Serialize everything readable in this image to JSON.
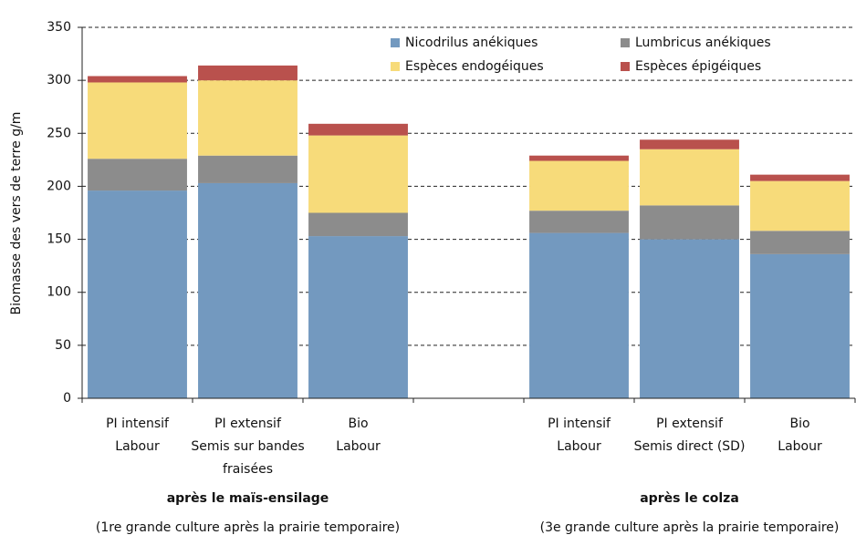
{
  "chart_data": {
    "type": "stacked_bar",
    "y_label": "Biomasse des vers de terre g/m",
    "categories": [
      [
        "PI intensif",
        "Labour"
      ],
      [
        "PI extensif",
        "Semis sur bandes",
        "fraisées"
      ],
      [
        "Bio",
        "Labour"
      ],
      null,
      [
        "PI intensif",
        "Labour"
      ],
      [
        "PI extensif",
        "Semis direct (SD)"
      ],
      [
        "Bio",
        "Labour"
      ]
    ],
    "groups": [
      {
        "label": "après le maïs-ensilage",
        "note": "(1re grande culture après la prairie temporaire)"
      },
      {
        "label": "après le colza",
        "note": "(3e grande culture après la prairie temporaire)"
      }
    ],
    "series": [
      {
        "name": "Nicodrilus anékiques",
        "color": "#7399bf",
        "values": [
          196,
          203,
          153,
          null,
          156,
          150,
          136
        ]
      },
      {
        "name": "Lumbricus anékiques",
        "color": "#8c8c8c",
        "values": [
          30,
          26,
          22,
          null,
          21,
          32,
          22
        ]
      },
      {
        "name": "Espèces endogéiques",
        "color": "#f7db7a",
        "values": [
          72,
          71,
          73,
          null,
          47,
          53,
          47
        ]
      },
      {
        "name": "Espèces épigéiques",
        "color": "#b9514d",
        "values": [
          6,
          14,
          11,
          null,
          5,
          9,
          6
        ]
      }
    ],
    "ylim": [
      0,
      350
    ],
    "yticks": [
      0,
      50,
      100,
      150,
      200,
      250,
      300,
      350
    ],
    "grid": true
  }
}
